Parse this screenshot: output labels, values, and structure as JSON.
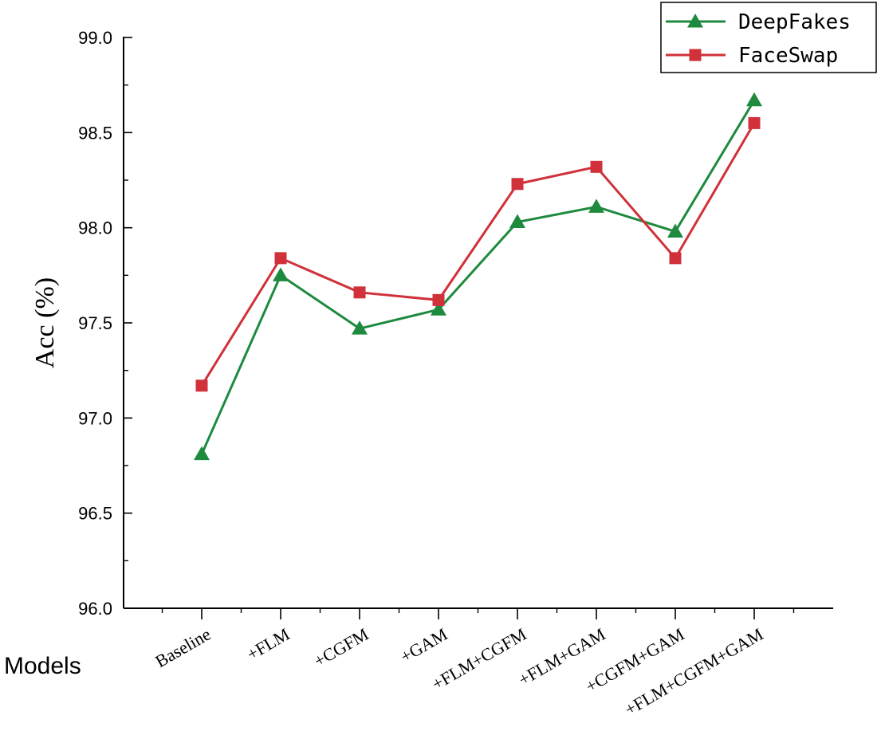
{
  "chart_data": {
    "type": "line",
    "title": "",
    "xlabel": "Models",
    "ylabel": "Acc (%)",
    "categories": [
      "Baseline",
      "+FLM",
      "+CGFM",
      "+GAM",
      "+FLM+CGFM",
      "+FLM+GAM",
      "+CGFM+GAM",
      "+FLM+CGFM+GAM"
    ],
    "ylim": [
      96.0,
      99.0
    ],
    "yticks": [
      "96.0",
      "96.5",
      "97.0",
      "97.5",
      "98.0",
      "98.5",
      "99.0"
    ],
    "grid": false,
    "legend_position": "top-right",
    "series": [
      {
        "name": "DeepFakes",
        "color": "#1e8a3e",
        "marker": "triangle",
        "values": [
          96.81,
          97.75,
          97.47,
          97.57,
          98.03,
          98.11,
          97.98,
          98.67
        ]
      },
      {
        "name": "FaceSwap",
        "color": "#d0313a",
        "marker": "square",
        "values": [
          97.17,
          97.84,
          97.66,
          97.62,
          98.23,
          98.32,
          97.84,
          98.55
        ]
      }
    ]
  }
}
